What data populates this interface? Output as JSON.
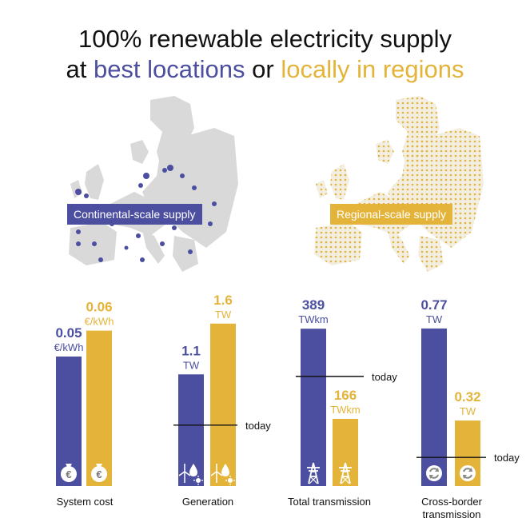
{
  "title": {
    "line1": "100% renewable electricity supply",
    "line2_prefix": "at",
    "line2_blue": "best locations",
    "line2_mid": "or",
    "line2_gold": "locally in regions"
  },
  "maps": {
    "continental_label": "Continental-scale supply",
    "regional_label": "Regional-scale supply"
  },
  "colors": {
    "blue": "#4c4fa0",
    "gold": "#e4b43a",
    "text": "#111111",
    "map_gray": "#d9d9d9",
    "map_cream": "#f3eee2"
  },
  "chart_data": [
    {
      "type": "bar",
      "title": "System cost",
      "categories": [
        "Continental-scale supply",
        "Regional-scale supply"
      ],
      "values": [
        0.05,
        0.06
      ],
      "value_labels": [
        "0.05",
        "0.06"
      ],
      "unit": "€/kWh",
      "today": null,
      "icon": "money-bag-euro-icon"
    },
    {
      "type": "bar",
      "title": "Generation",
      "categories": [
        "Continental-scale supply",
        "Regional-scale supply"
      ],
      "values": [
        1.1,
        1.6
      ],
      "value_labels": [
        "1.1",
        "1.6"
      ],
      "unit": "TW",
      "today": 0.6,
      "today_label": "today",
      "icon": "wind-hydro-solar-icon"
    },
    {
      "type": "bar",
      "title": "Total transmission",
      "categories": [
        "Continental-scale supply",
        "Regional-scale supply"
      ],
      "values": [
        389,
        166
      ],
      "value_labels": [
        "389",
        "166"
      ],
      "unit": "TWkm",
      "today": 271,
      "today_label": "today",
      "icon": "transmission-tower-icon"
    },
    {
      "type": "bar",
      "title": "Cross-border transmission",
      "title_lines": [
        "Cross-border",
        "transmission"
      ],
      "categories": [
        "Continental-scale supply",
        "Regional-scale supply"
      ],
      "values": [
        0.77,
        0.32
      ],
      "value_labels": [
        "0.77",
        "0.32"
      ],
      "unit": "TW",
      "today": 0.14,
      "today_label": "today",
      "icon": "exchange-arrows-icon"
    }
  ]
}
